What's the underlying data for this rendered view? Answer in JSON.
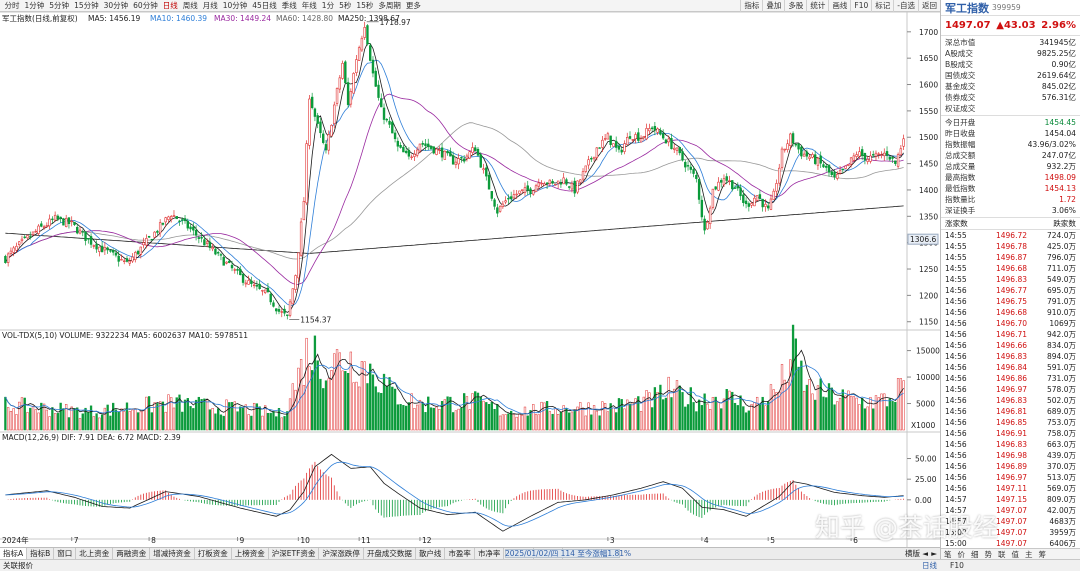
{
  "toolbar": {
    "periods": [
      "分时",
      "1分钟",
      "5分钟",
      "15分钟",
      "30分钟",
      "60分钟",
      "日线",
      "周线",
      "月线",
      "10分钟",
      "45日线",
      "季线",
      "年线",
      "1分",
      "5秒",
      "15秒",
      "多周期",
      "更多"
    ],
    "active_period": "日线",
    "tools": [
      "指标",
      "叠加",
      "多股",
      "统计",
      "画线",
      "F10",
      "标记",
      "-自选",
      "返回"
    ]
  },
  "chart_header": {
    "title": "军工指数(日线,前复权)",
    "ma5": "MA5: 1456.19",
    "ma10": "MA10: 1460.39",
    "ma30": "MA30: 1449.24",
    "ma60": "MA60: 1428.80",
    "ma250": "MA250: 1398.67"
  },
  "price_axis": {
    "ticks": [
      "1700",
      "1650",
      "1600",
      "1550",
      "1500",
      "1450",
      "1400",
      "1350",
      "1300",
      "1250",
      "1200",
      "1150"
    ],
    "marker": "1306.6",
    "high_label": "1718.97",
    "low_label": "1154.37"
  },
  "volume_panel": {
    "header": "VOL-TDX(5,10)  VOLUME: 9322234  MA5: 6002637  MA10: 5978511",
    "ticks": [
      "15000",
      "10000",
      "5000"
    ],
    "unit": "X1000"
  },
  "macd_panel": {
    "header": "MACD(12,26,9)  DIF: 7.91  DEA: 6.72  MACD: 2.39",
    "ticks": [
      "50.00",
      "25.00",
      "0.00"
    ]
  },
  "date_axis": {
    "year_label": "2024年",
    "months": [
      "7",
      "8",
      "9",
      "10",
      "11",
      "12",
      "3",
      "4",
      "5",
      "6"
    ]
  },
  "chart_data": {
    "type": "candlestick",
    "symbol": "军工指数",
    "ylim": [
      1140,
      1730
    ],
    "vol_ylim": [
      0,
      17000
    ],
    "macd_ylim": [
      -45,
      70
    ],
    "colors": {
      "up": "#e03030",
      "down": "#0a9a3a",
      "ma5": "#1a1a1a",
      "ma10": "#2f7fd8",
      "ma30": "#9a2aa0",
      "ma60": "#999999",
      "ma250": "#1a1a1a"
    },
    "anchors": [
      [
        0,
        1270
      ],
      [
        6,
        1300
      ],
      [
        12,
        1325
      ],
      [
        18,
        1345
      ],
      [
        24,
        1335
      ],
      [
        30,
        1305
      ],
      [
        36,
        1285
      ],
      [
        44,
        1260
      ],
      [
        50,
        1295
      ],
      [
        56,
        1330
      ],
      [
        60,
        1355
      ],
      [
        66,
        1330
      ],
      [
        72,
        1300
      ],
      [
        78,
        1270
      ],
      [
        84,
        1240
      ],
      [
        90,
        1215
      ],
      [
        95,
        1200
      ],
      [
        99,
        1170
      ],
      [
        102,
        1158
      ],
      [
        105,
        1240
      ],
      [
        108,
        1380
      ],
      [
        110,
        1580
      ],
      [
        113,
        1520
      ],
      [
        116,
        1470
      ],
      [
        119,
        1560
      ],
      [
        122,
        1640
      ],
      [
        124,
        1560
      ],
      [
        127,
        1650
      ],
      [
        130,
        1715
      ],
      [
        133,
        1620
      ],
      [
        136,
        1550
      ],
      [
        139,
        1520
      ],
      [
        142,
        1480
      ],
      [
        146,
        1460
      ],
      [
        150,
        1490
      ],
      [
        154,
        1480
      ],
      [
        158,
        1470
      ],
      [
        162,
        1455
      ],
      [
        166,
        1460
      ],
      [
        170,
        1480
      ],
      [
        174,
        1420
      ],
      [
        178,
        1360
      ],
      [
        182,
        1385
      ],
      [
        186,
        1395
      ],
      [
        190,
        1400
      ],
      [
        194,
        1420
      ],
      [
        198,
        1410
      ],
      [
        202,
        1420
      ],
      [
        206,
        1400
      ],
      [
        210,
        1440
      ],
      [
        214,
        1480
      ],
      [
        218,
        1500
      ],
      [
        222,
        1470
      ],
      [
        226,
        1505
      ],
      [
        230,
        1500
      ],
      [
        234,
        1520
      ],
      [
        238,
        1500
      ],
      [
        242,
        1480
      ],
      [
        246,
        1450
      ],
      [
        250,
        1420
      ],
      [
        253,
        1320
      ],
      [
        256,
        1400
      ],
      [
        260,
        1425
      ],
      [
        264,
        1405
      ],
      [
        268,
        1370
      ],
      [
        272,
        1390
      ],
      [
        276,
        1360
      ],
      [
        278,
        1390
      ],
      [
        281,
        1470
      ],
      [
        284,
        1500
      ],
      [
        288,
        1470
      ],
      [
        292,
        1460
      ],
      [
        296,
        1445
      ],
      [
        300,
        1420
      ],
      [
        304,
        1440
      ],
      [
        308,
        1470
      ],
      [
        312,
        1460
      ],
      [
        316,
        1465
      ],
      [
        319,
        1470
      ],
      [
        322,
        1450
      ],
      [
        325,
        1497
      ]
    ],
    "last_price": 1497.07,
    "volume_levels": [
      [
        0,
        4800
      ],
      [
        30,
        3500
      ],
      [
        60,
        5200
      ],
      [
        90,
        3800
      ],
      [
        100,
        3000
      ],
      [
        105,
        9000
      ],
      [
        110,
        16000
      ],
      [
        116,
        12000
      ],
      [
        122,
        14000
      ],
      [
        128,
        13000
      ],
      [
        134,
        11000
      ],
      [
        140,
        7000
      ],
      [
        150,
        5000
      ],
      [
        170,
        5500
      ],
      [
        180,
        3500
      ],
      [
        200,
        4200
      ],
      [
        220,
        4500
      ],
      [
        234,
        5800
      ],
      [
        240,
        7500
      ],
      [
        250,
        5800
      ],
      [
        260,
        6500
      ],
      [
        270,
        4500
      ],
      [
        280,
        8000
      ],
      [
        285,
        15000
      ],
      [
        290,
        8000
      ],
      [
        300,
        6500
      ],
      [
        310,
        5500
      ],
      [
        320,
        5800
      ],
      [
        325,
        9300
      ]
    ],
    "macd_levels": [
      [
        0,
        6
      ],
      [
        15,
        11
      ],
      [
        25,
        3
      ],
      [
        35,
        -8
      ],
      [
        45,
        -10
      ],
      [
        58,
        10
      ],
      [
        70,
        4
      ],
      [
        85,
        -10
      ],
      [
        98,
        -20
      ],
      [
        103,
        -12
      ],
      [
        108,
        10
      ],
      [
        112,
        40
      ],
      [
        118,
        55
      ],
      [
        125,
        38
      ],
      [
        132,
        40
      ],
      [
        137,
        20
      ],
      [
        142,
        8
      ],
      [
        150,
        -10
      ],
      [
        160,
        -18
      ],
      [
        170,
        -15
      ],
      [
        180,
        -38
      ],
      [
        190,
        -20
      ],
      [
        200,
        -3
      ],
      [
        210,
        0
      ],
      [
        220,
        6
      ],
      [
        230,
        14
      ],
      [
        238,
        22
      ],
      [
        245,
        14
      ],
      [
        252,
        -9
      ],
      [
        260,
        -12
      ],
      [
        268,
        -20
      ],
      [
        274,
        -8
      ],
      [
        280,
        4
      ],
      [
        285,
        22
      ],
      [
        290,
        19
      ],
      [
        300,
        9
      ],
      [
        310,
        5
      ],
      [
        318,
        3
      ],
      [
        325,
        5
      ]
    ]
  },
  "quote_panel": {
    "name": "军工指数",
    "code": "399959",
    "price": "1497.07",
    "change": "▲43.03",
    "change_pct": "2.96%",
    "market_rows": [
      {
        "k": "深总市值",
        "v": "341945亿"
      },
      {
        "k": "A股成交",
        "v": "9825.25亿"
      },
      {
        "k": "B股成交",
        "v": "0.90亿"
      },
      {
        "k": "国债成交",
        "v": "2619.64亿"
      },
      {
        "k": "基金成交",
        "v": "845.02亿"
      },
      {
        "k": "债券成交",
        "v": "576.31亿"
      },
      {
        "k": "权证成交",
        "v": ""
      }
    ],
    "day_rows": [
      {
        "k": "今日开盘",
        "v": "1454.45",
        "c": "green"
      },
      {
        "k": "昨日收盘",
        "v": "1454.04",
        "c": ""
      },
      {
        "k": "指数振幅",
        "v": "43.96/3.02%",
        "c": ""
      },
      {
        "k": "总成交额",
        "v": "247.07亿",
        "c": ""
      },
      {
        "k": "总成交量",
        "v": "932.2万",
        "c": ""
      },
      {
        "k": "最高指数",
        "v": "1498.09",
        "c": "red"
      },
      {
        "k": "最低指数",
        "v": "1454.13",
        "c": "red"
      },
      {
        "k": "指数量比",
        "v": "1.72",
        "c": "red"
      },
      {
        "k": "深证换手",
        "v": "3.06%",
        "c": ""
      }
    ],
    "ticks_header": {
      "left": "涨家数",
      "right": "跌家数"
    },
    "ticks": [
      {
        "t": "14:55",
        "p": "1496.72",
        "v": "724.0万"
      },
      {
        "t": "14:55",
        "p": "1496.78",
        "v": "425.0万"
      },
      {
        "t": "14:55",
        "p": "1496.87",
        "v": "796.0万"
      },
      {
        "t": "14:55",
        "p": "1496.68",
        "v": "711.0万"
      },
      {
        "t": "14:55",
        "p": "1496.83",
        "v": "549.0万"
      },
      {
        "t": "14:56",
        "p": "1496.77",
        "v": "695.0万"
      },
      {
        "t": "14:56",
        "p": "1496.75",
        "v": "791.0万"
      },
      {
        "t": "14:56",
        "p": "1496.68",
        "v": "910.0万"
      },
      {
        "t": "14:56",
        "p": "1496.70",
        "v": "1069万"
      },
      {
        "t": "14:56",
        "p": "1496.71",
        "v": "942.0万"
      },
      {
        "t": "14:56",
        "p": "1496.66",
        "v": "834.0万"
      },
      {
        "t": "14:56",
        "p": "1496.83",
        "v": "894.0万"
      },
      {
        "t": "14:56",
        "p": "1496.84",
        "v": "591.0万"
      },
      {
        "t": "14:56",
        "p": "1496.86",
        "v": "731.0万"
      },
      {
        "t": "14:56",
        "p": "1496.97",
        "v": "578.0万"
      },
      {
        "t": "14:56",
        "p": "1496.83",
        "v": "502.0万"
      },
      {
        "t": "14:56",
        "p": "1496.81",
        "v": "689.0万"
      },
      {
        "t": "14:56",
        "p": "1496.85",
        "v": "753.0万"
      },
      {
        "t": "14:56",
        "p": "1496.91",
        "v": "758.0万"
      },
      {
        "t": "14:56",
        "p": "1496.83",
        "v": "663.0万"
      },
      {
        "t": "14:56",
        "p": "1496.98",
        "v": "439.0万"
      },
      {
        "t": "14:56",
        "p": "1496.89",
        "v": "370.0万"
      },
      {
        "t": "14:56",
        "p": "1496.97",
        "v": "513.0万"
      },
      {
        "t": "14:56",
        "p": "1497.11",
        "v": "569.0万"
      },
      {
        "t": "14:57",
        "p": "1497.15",
        "v": "809.0万"
      },
      {
        "t": "14:57",
        "p": "1497.07",
        "v": "42.00万"
      },
      {
        "t": "14:57",
        "p": "1497.07",
        "v": "4683万"
      },
      {
        "t": "15:00",
        "p": "1497.07",
        "v": "3959万"
      },
      {
        "t": "15:00",
        "p": "1497.07",
        "v": "6406万"
      }
    ],
    "bottom_tabs": [
      "笔",
      "价",
      "细",
      "势",
      "联",
      "值",
      "主",
      "筹"
    ]
  },
  "bottom_tabs": {
    "items": [
      "指标A",
      "指标B",
      "窗口",
      "北上资金",
      "两融资金",
      "增减持资金",
      "打板资金",
      "上榜资金",
      "沪深ETF资金",
      "沪深涨跌停",
      "开盘成交数据",
      "散户线",
      "市盈率",
      "市净率",
      "市现率",
      "市销率"
    ],
    "range_label": "2025/01/02/四 114 至今涨幅1.81%",
    "horizontal": "横版",
    "prev": "◄",
    "next": "►"
  },
  "status_bar": {
    "text": "关联报价",
    "daily": "日线",
    "f10": "F10"
  },
  "watermark": "知乎 @茶话股经"
}
